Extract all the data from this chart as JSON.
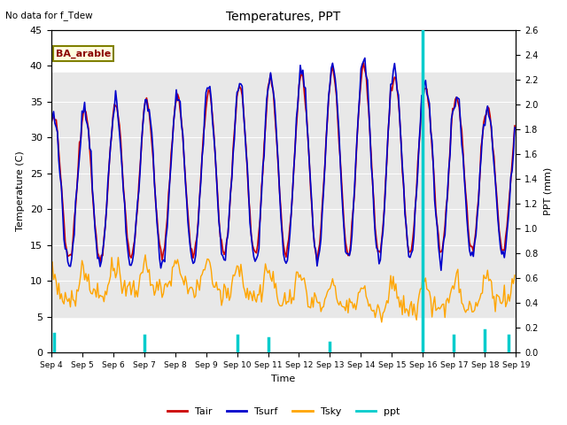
{
  "title": "Temperatures, PPT",
  "subtitle": "No data for f_Tdew",
  "location_label": "BA_arable",
  "xlabel": "Time",
  "ylabel_left": "Temperature (C)",
  "ylabel_right": "PPT (mm)",
  "ylim_left": [
    0,
    45
  ],
  "ylim_right": [
    0,
    2.6
  ],
  "n_hours": 360,
  "shaded_band": [
    5,
    39
  ],
  "colors": {
    "Tair": "#cc0000",
    "Tsurf": "#0000cc",
    "Tsky": "#ffa500",
    "ppt": "#00cccc",
    "shaded_band": "#e8e8e8"
  },
  "x_tick_labels": [
    "Sep 4",
    "Sep 5",
    "Sep 6",
    "Sep 7",
    "Sep 8",
    "Sep 9",
    "Sep 10",
    "Sep 11",
    "Sep 12",
    "Sep 13",
    "Sep 14",
    "Sep 15",
    "Sep 16",
    "Sep 17",
    "Sep 18",
    "Sep 19"
  ],
  "x_tick_positions": [
    0,
    24,
    48,
    72,
    96,
    120,
    144,
    168,
    192,
    216,
    240,
    264,
    288,
    312,
    336,
    360
  ],
  "right_ticks": [
    0.0,
    0.2,
    0.4,
    0.6,
    0.8,
    1.0,
    1.2,
    1.4,
    1.6,
    1.8,
    2.0,
    2.2,
    2.4,
    2.6
  ],
  "ppt_spikes": {
    "positions": [
      2,
      72,
      144,
      168,
      216,
      288,
      312,
      336,
      354
    ],
    "heights": [
      0.15,
      0.14,
      0.14,
      0.12,
      0.08,
      2.6,
      0.14,
      0.18,
      0.14
    ]
  },
  "legend_entries": [
    "Tair",
    "Tsurf",
    "Tsky",
    "ppt"
  ],
  "figsize": [
    6.4,
    4.8
  ],
  "dpi": 100
}
